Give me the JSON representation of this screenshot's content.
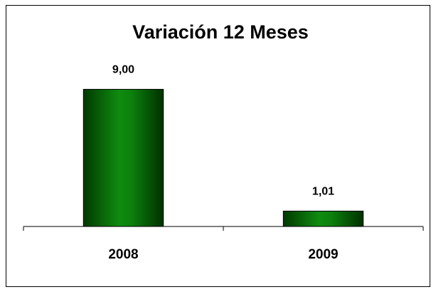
{
  "chart_data": {
    "type": "bar",
    "title": "Variación 12 Meses",
    "categories": [
      "2008",
      "2009"
    ],
    "values": [
      9.0,
      1.01
    ],
    "value_labels": [
      "9,00",
      "1,01"
    ],
    "color": "#0a7a0a",
    "ylim": [
      0,
      10
    ]
  }
}
